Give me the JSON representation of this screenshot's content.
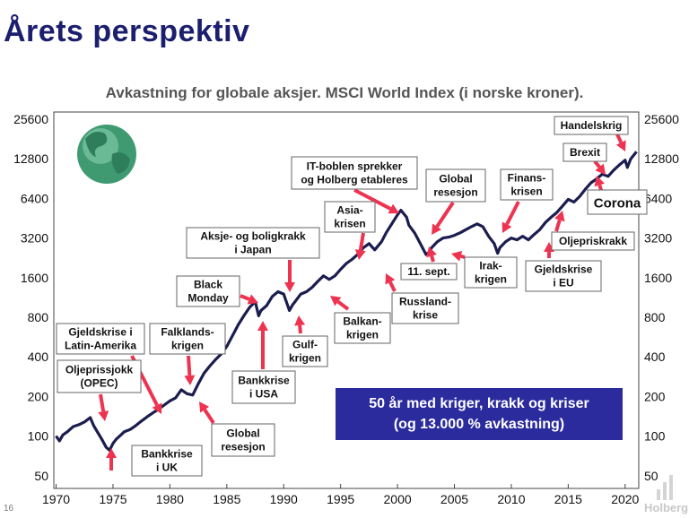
{
  "header": {
    "title": "Årets perspektiv"
  },
  "chart_data": {
    "type": "line",
    "title": "Avkastning for globale aksjer. MSCI World Index (i norske kroner).",
    "yscale": "log",
    "ylim": [
      40,
      29000
    ],
    "xlim": [
      1969.8,
      2021.2
    ],
    "yticks": [
      "50",
      "100",
      "200",
      "400",
      "800",
      "1600",
      "3200",
      "6400",
      "12800",
      "25600"
    ],
    "ytick_values": [
      50,
      100,
      200,
      400,
      800,
      1600,
      3200,
      6400,
      12800,
      25600
    ],
    "xticks": [
      "1970",
      "1975",
      "1980",
      "1985",
      "1990",
      "1995",
      "2000",
      "2005",
      "2010",
      "2015",
      "2020"
    ],
    "xtick_values": [
      1970,
      1975,
      1980,
      1985,
      1990,
      1995,
      2000,
      2005,
      2010,
      2015,
      2020
    ],
    "series": [
      {
        "color": "#1b1d4f",
        "x": [
          1970,
          1970.3,
          1970.6,
          1971,
          1971.5,
          1972,
          1972.5,
          1973,
          1973.3,
          1973.7,
          1974,
          1974.4,
          1974.7,
          1975,
          1975.3,
          1975.7,
          1976,
          1976.5,
          1977,
          1977.5,
          1978,
          1978.5,
          1979,
          1979.5,
          1980,
          1980.5,
          1981,
          1981.5,
          1982,
          1982.5,
          1983,
          1983.5,
          1984,
          1984.5,
          1985,
          1985.5,
          1986,
          1986.5,
          1987,
          1987.5,
          1987.8,
          1988,
          1988.5,
          1989,
          1989.5,
          1990,
          1990.5,
          1990.8,
          1991,
          1991.5,
          1992,
          1992.5,
          1993,
          1993.5,
          1994,
          1994.5,
          1995,
          1995.5,
          1996,
          1996.5,
          1997,
          1997.5,
          1998,
          1998.6,
          1999,
          1999.5,
          2000,
          2000.3,
          2000.8,
          2001,
          2001.5,
          2002,
          2002.5,
          2002.8,
          2003,
          2003.5,
          2004,
          2004.5,
          2005,
          2005.5,
          2006,
          2006.5,
          2007,
          2007.5,
          2008,
          2008.5,
          2008.8,
          2009,
          2009.5,
          2010,
          2010.5,
          2011,
          2011.5,
          2012,
          2012.5,
          2013,
          2013.5,
          2014,
          2014.5,
          2015,
          2015.5,
          2016,
          2016.5,
          2017,
          2017.5,
          2018,
          2018.5,
          2019,
          2019.5,
          2020,
          2020.2,
          2020.5,
          2021
        ],
        "values": [
          100,
          92,
          102,
          108,
          118,
          122,
          128,
          138,
          120,
          105,
          95,
          82,
          78,
          88,
          95,
          102,
          108,
          112,
          120,
          130,
          140,
          150,
          160,
          172,
          185,
          195,
          225,
          210,
          205,
          250,
          300,
          340,
          380,
          420,
          480,
          580,
          700,
          820,
          950,
          1050,
          820,
          900,
          980,
          1150,
          1250,
          1200,
          900,
          1000,
          1050,
          1200,
          1250,
          1350,
          1500,
          1650,
          1550,
          1650,
          1850,
          2050,
          2200,
          2400,
          2700,
          2900,
          2600,
          3000,
          3500,
          4100,
          4800,
          5200,
          4600,
          4000,
          3500,
          2900,
          2400,
          2500,
          2700,
          3000,
          3200,
          3250,
          3350,
          3500,
          3700,
          3900,
          4100,
          3900,
          3300,
          2900,
          2450,
          2700,
          3000,
          3200,
          3100,
          3300,
          3100,
          3400,
          3700,
          4200,
          4600,
          5000,
          5600,
          6300,
          6000,
          6600,
          7500,
          8400,
          9000,
          9800,
          9400,
          10500,
          11500,
          12500,
          11000,
          12800,
          14500
        ]
      }
    ],
    "annotations": [
      "Oljeprissjokk (OPEC)",
      "Gjeldskrise i Latin-Amerika",
      "Bankkrise i UK",
      "Falklands-krigen",
      "Global resesjon",
      "Black Monday",
      "Bankkrise i USA",
      "Aksje- og boligkrakk i Japan",
      "Gulf-krigen",
      "Balkan-krigen",
      "Asia-krisen",
      "Russland-krise",
      "IT-boblen sprekker",
      "og Holberg etableres",
      "11. sept.",
      "Global resesjon",
      "Irak-krigen",
      "Finans-krisen",
      "Gjeldskrise i EU",
      "Oljepriskrakk",
      "Brexit",
      "Handelskrig",
      "Corona"
    ],
    "grid": false,
    "legend": "none"
  },
  "highlight": {
    "line1": "50 år med kriger, krakk og kriser",
    "line2": "(og 13.000 % avkastning)"
  },
  "boxes": {
    "opec": [
      "Oljeprissjokk",
      "(OPEC)"
    ],
    "latin": [
      "Gjeldskrise i",
      "Latin-Amerika"
    ],
    "bank_uk": [
      "Bankkrise",
      "i UK"
    ],
    "falklands": [
      "Falklands-",
      "krigen"
    ],
    "global1": [
      "Global",
      "resesjon"
    ],
    "black_monday": [
      "Black",
      "Monday"
    ],
    "bank_usa": [
      "Bankkrise",
      "i USA"
    ],
    "japan": [
      "Aksje- og boligkrakk",
      "i Japan"
    ],
    "gulf": [
      "Gulf-",
      "krigen"
    ],
    "balkan": [
      "Balkan-",
      "krigen"
    ],
    "asia": [
      "Asia-",
      "krisen"
    ],
    "russland": [
      "Russland-",
      "krise"
    ],
    "it": [
      "IT-boblen sprekker",
      "og Holberg etableres"
    ],
    "sept": [
      "11. sept."
    ],
    "global2": [
      "Global",
      "resesjon"
    ],
    "irak": [
      "Irak-",
      "krigen"
    ],
    "finans": [
      "Finans-",
      "krisen"
    ],
    "eu": [
      "Gjeldskrise",
      "i EU"
    ],
    "olje": [
      "Oljepriskrakk"
    ],
    "brexit": [
      "Brexit"
    ],
    "handel": [
      "Handelskrig"
    ],
    "corona": [
      "Corona"
    ]
  },
  "footer": {
    "page_number": "16",
    "logo_text": "Holberg"
  },
  "colors": {
    "line": "#1b1d4f",
    "arrow": "#ee3350",
    "title": "#1b1f6e",
    "highlight_bg": "#2b2b9e"
  }
}
